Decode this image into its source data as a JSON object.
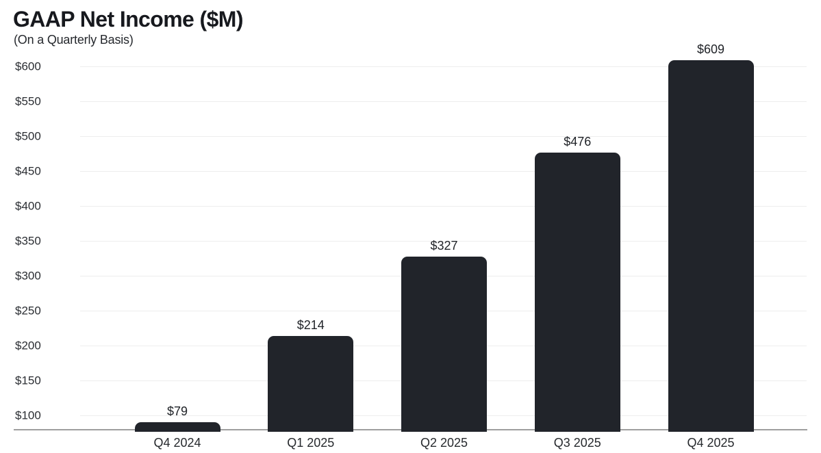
{
  "header": {
    "title": "GAAP Net Income ($M)",
    "subtitle": "(On a Quarterly Basis)"
  },
  "chart_data": {
    "type": "bar",
    "title": "GAAP Net Income ($M)",
    "subtitle": "(On a Quarterly Basis)",
    "categories": [
      "Q4 2024",
      "Q1 2025",
      "Q2 2025",
      "Q3 2025",
      "Q4 2025"
    ],
    "values": [
      79,
      214,
      327,
      476,
      609
    ],
    "value_labels": [
      "$79",
      "$214",
      "$327",
      "$476",
      "$609"
    ],
    "yticks": [
      100,
      150,
      200,
      250,
      300,
      350,
      400,
      450,
      500,
      550,
      600
    ],
    "ytick_labels": [
      "$100",
      "$150",
      "$200",
      "$250",
      "$300",
      "$350",
      "$400",
      "$450",
      "$500",
      "$550",
      "$600"
    ],
    "ylim": [
      79,
      620
    ],
    "xlabel": "",
    "ylabel": "",
    "grid": "horizontal",
    "legend": "none",
    "colors": {
      "bar": "#21242a",
      "gridline": "#ededed",
      "axis_line": "#9e9e9e",
      "title_text": "#17191e",
      "label_text": "#1e2126",
      "background": "#ffffff"
    }
  }
}
